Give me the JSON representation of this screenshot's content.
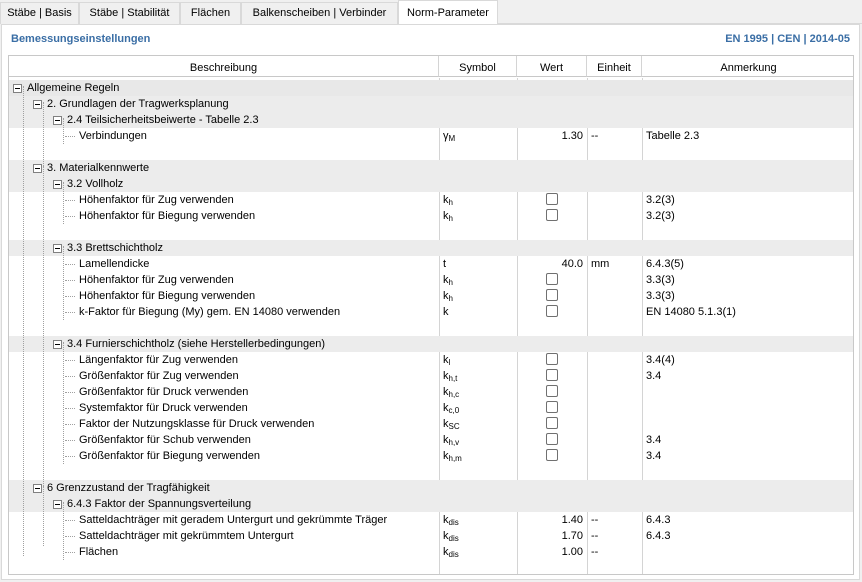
{
  "tabs": [
    {
      "label": "Stäbe | Basis"
    },
    {
      "label": "Stäbe | Stabilität"
    },
    {
      "label": "Flächen"
    },
    {
      "label": "Balkenscheiben | Verbinder"
    },
    {
      "label": "Norm-Parameter"
    }
  ],
  "header": {
    "title": "Bemessungseinstellungen",
    "norm": "EN 1995 | CEN | 2014-05"
  },
  "columns": {
    "beschreibung": "Beschreibung",
    "symbol": "Symbol",
    "wert": "Wert",
    "einheit": "Einheit",
    "anmerkung": "Anmerkung"
  },
  "rows": [
    {
      "label": "Allgemeine Regeln"
    },
    {
      "label": "2. Grundlagen der Tragwerksplanung"
    },
    {
      "label": "2.4 Teilsicherheitsbeiwerte - Tabelle 2.3"
    },
    {
      "label": "Verbindungen",
      "sym": "γ",
      "sub": "M",
      "wert": "1.30",
      "einheit": "--",
      "anm": "Tabelle 2.3"
    },
    {
      "label": "3. Materialkennwerte"
    },
    {
      "label": "3.2 Vollholz"
    },
    {
      "label": "Höhenfaktor für Zug verwenden",
      "sym": "k",
      "sub": "h",
      "anm": "3.2(3)"
    },
    {
      "label": "Höhenfaktor für Biegung verwenden",
      "sym": "k",
      "sub": "h",
      "anm": "3.2(3)"
    },
    {
      "label": "3.3 Brettschichtholz"
    },
    {
      "label": "Lamellendicke",
      "sym": "t",
      "sub": "",
      "wert": "40.0",
      "einheit": "mm",
      "anm": "6.4.3(5)"
    },
    {
      "label": "Höhenfaktor für Zug verwenden",
      "sym": "k",
      "sub": "h",
      "anm": "3.3(3)"
    },
    {
      "label": "Höhenfaktor für Biegung verwenden",
      "sym": "k",
      "sub": "h",
      "anm": "3.3(3)"
    },
    {
      "label": "k-Faktor für Biegung (My) gem. EN 14080 verwenden",
      "sym": "k",
      "sub": "",
      "anm": "EN 14080 5.1.3(1)"
    },
    {
      "label": "3.4 Furnierschichtholz (siehe Herstellerbedingungen)"
    },
    {
      "label": "Längenfaktor für Zug verwenden",
      "sym": "k",
      "sub": "l",
      "anm": "3.4(4)"
    },
    {
      "label": "Größenfaktor für Zug verwenden",
      "sym": "k",
      "sub": "h,t",
      "anm": "3.4"
    },
    {
      "label": "Größenfaktor für Druck verwenden",
      "sym": "k",
      "sub": "h,c",
      "anm": ""
    },
    {
      "label": "Systemfaktor für Druck verwenden",
      "sym": "k",
      "sub": "c,0",
      "anm": ""
    },
    {
      "label": "Faktor der Nutzungsklasse für Druck verwenden",
      "sym": "k",
      "sub": "SC",
      "anm": ""
    },
    {
      "label": "Größenfaktor für Schub verwenden",
      "sym": "k",
      "sub": "h,v",
      "anm": "3.4"
    },
    {
      "label": "Größenfaktor für Biegung verwenden",
      "sym": "k",
      "sub": "h,m",
      "anm": "3.4"
    },
    {
      "label": "6 Grenzzustand der Tragfähigkeit"
    },
    {
      "label": "6.4.3 Faktor der Spannungsverteilung"
    },
    {
      "label": "Satteldachträger mit geradem Untergurt und gekrümmte Träger",
      "sym": "k",
      "sub": "dis",
      "wert": "1.40",
      "einheit": "--",
      "anm": "6.4.3"
    },
    {
      "label": "Satteldachträger mit gekrümmtem Untergurt",
      "sym": "k",
      "sub": "dis",
      "wert": "1.70",
      "einheit": "--",
      "anm": "6.4.3"
    },
    {
      "label": "Flächen",
      "sym": "k",
      "sub": "dis",
      "wert": "1.00",
      "einheit": "--",
      "anm": ""
    }
  ]
}
